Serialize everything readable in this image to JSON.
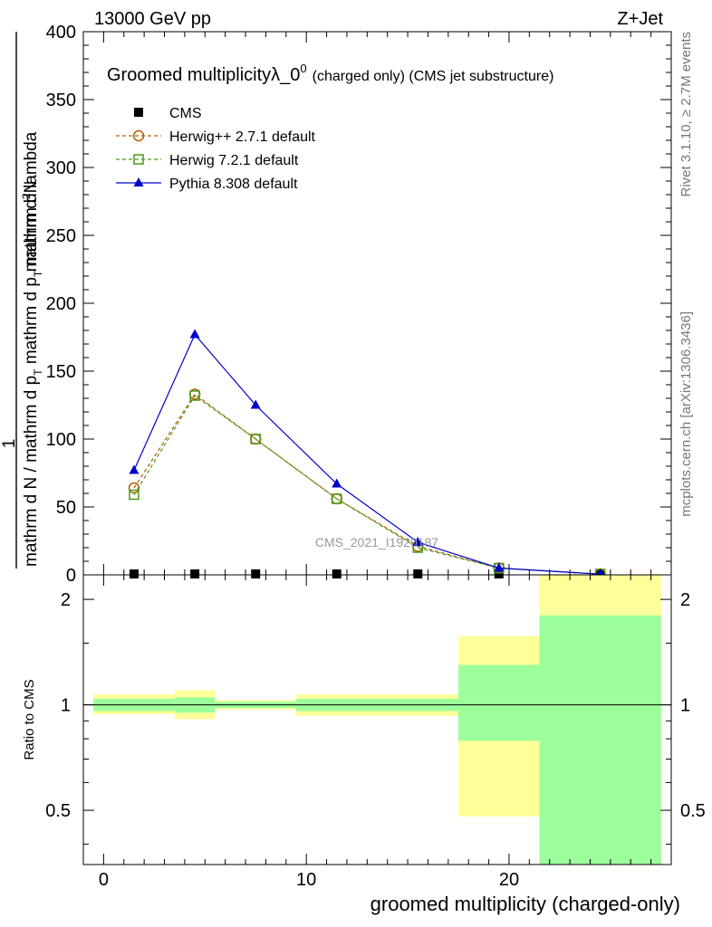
{
  "header": {
    "left": "13000 GeV pp",
    "right": "Z+Jet"
  },
  "side_labels": {
    "rivet": "Rivet 3.1.10, ≥ 2.7M events",
    "mcplots": "mcplots.cern.ch [arXiv:1306.3436]"
  },
  "chart_data": [
    {
      "type": "line",
      "title_main": "Groomed multiplicityλ_0",
      "title_sup": "0",
      "title_suffix": "(charged only) (CMS jet substructure)",
      "watermark": "CMS_2021_I1920187",
      "ylabel_num": "1",
      "ylabel_num_top": "mathrm d",
      "ylabel_num_sup": "2",
      "ylabel_num_end": "N",
      "ylabel_den": "mathrm d N / mathrm d p",
      "ylabel_den_sub": "T",
      "ylabel_den_end": " mathrm d p",
      "ylabel_den_sub2": "T",
      "ylabel_den_end2": " mathrm d lambda",
      "ylim": [
        0,
        400
      ],
      "xlim": [
        -1,
        28
      ],
      "yticks": [
        0,
        50,
        100,
        150,
        200,
        250,
        300,
        350,
        400
      ],
      "ytick_labels": [
        "0",
        "50",
        "100",
        "150",
        "200",
        "250",
        "300",
        "350",
        "400"
      ],
      "legend": [
        {
          "label": "CMS",
          "color": "#000000",
          "marker": "square-filled",
          "dash": false
        },
        {
          "label": "Herwig++ 2.7.1 default",
          "color": "#b35c00",
          "marker": "circle-open",
          "dash": true
        },
        {
          "label": "Herwig 7.2.1 default",
          "color": "#4c9a1a",
          "marker": "square-open",
          "dash": true
        },
        {
          "label": "Pythia 8.308 default",
          "color": "#0000cc",
          "marker": "triangle-filled",
          "dash": false
        }
      ],
      "series": [
        {
          "name": "CMS",
          "color": "#000000",
          "marker": "square-filled",
          "x": [
            1.5,
            4.5,
            7.5,
            11.5,
            15.5,
            19.5,
            24.5
          ],
          "y": [
            0.5,
            0.5,
            0.5,
            0.5,
            0.5,
            0.3,
            0.1
          ]
        },
        {
          "name": "Herwig++ 2.7.1 default",
          "color": "#b35c00",
          "marker": "circle-open",
          "dash": true,
          "x": [
            1.5,
            4.5,
            7.5,
            11.5,
            15.5,
            19.5,
            24.5
          ],
          "y": [
            64,
            133,
            100,
            56,
            21,
            5,
            0.5
          ]
        },
        {
          "name": "Herwig 7.2.1 default",
          "color": "#4c9a1a",
          "marker": "square-open",
          "dash": true,
          "x": [
            1.5,
            4.5,
            7.5,
            11.5,
            15.5,
            19.5,
            24.5
          ],
          "y": [
            59,
            132,
            100,
            56,
            20,
            5,
            0.5
          ]
        },
        {
          "name": "Pythia 8.308 default",
          "color": "#0000cc",
          "marker": "triangle-filled",
          "dash": false,
          "x": [
            1.5,
            4.5,
            7.5,
            11.5,
            15.5,
            19.5,
            24.5
          ],
          "y": [
            77,
            177,
            125,
            67,
            24,
            5,
            0.5
          ]
        }
      ]
    },
    {
      "type": "area",
      "ylabel": "Ratio to CMS",
      "xlabel": "groomed multiplicity (charged-only)",
      "ylim": [
        0.35,
        2.35
      ],
      "log_y": true,
      "xlim": [
        -1,
        28
      ],
      "xticks": [
        0,
        10,
        20
      ],
      "xtick_labels": [
        "0",
        "10",
        "20"
      ],
      "yticks": [
        0.5,
        1,
        2
      ],
      "ytick_labels": [
        "0.5",
        "1",
        "2"
      ],
      "colors": {
        "stat_band": "#9cff9c",
        "total_band": "#ffff99",
        "ratio_line": "#000000"
      },
      "bins": [
        {
          "lo": -0.5,
          "hi": 3.5,
          "green": [
            0.96,
            1.04
          ],
          "yellow": [
            0.94,
            1.07
          ]
        },
        {
          "lo": 3.5,
          "hi": 5.5,
          "green": [
            0.95,
            1.05
          ],
          "yellow": [
            0.91,
            1.1
          ]
        },
        {
          "lo": 5.5,
          "hi": 9.5,
          "green": [
            0.98,
            1.02
          ],
          "yellow": [
            0.97,
            1.03
          ]
        },
        {
          "lo": 9.5,
          "hi": 13.5,
          "green": [
            0.96,
            1.04
          ],
          "yellow": [
            0.93,
            1.07
          ]
        },
        {
          "lo": 13.5,
          "hi": 17.5,
          "green": [
            0.96,
            1.04
          ],
          "yellow": [
            0.93,
            1.07
          ]
        },
        {
          "lo": 17.5,
          "hi": 21.5,
          "green": [
            0.79,
            1.3
          ],
          "yellow": [
            0.48,
            1.57
          ]
        },
        {
          "lo": 21.5,
          "hi": 27.5,
          "green": [
            0.35,
            1.8
          ],
          "yellow": [
            0.35,
            2.35
          ]
        }
      ]
    }
  ]
}
